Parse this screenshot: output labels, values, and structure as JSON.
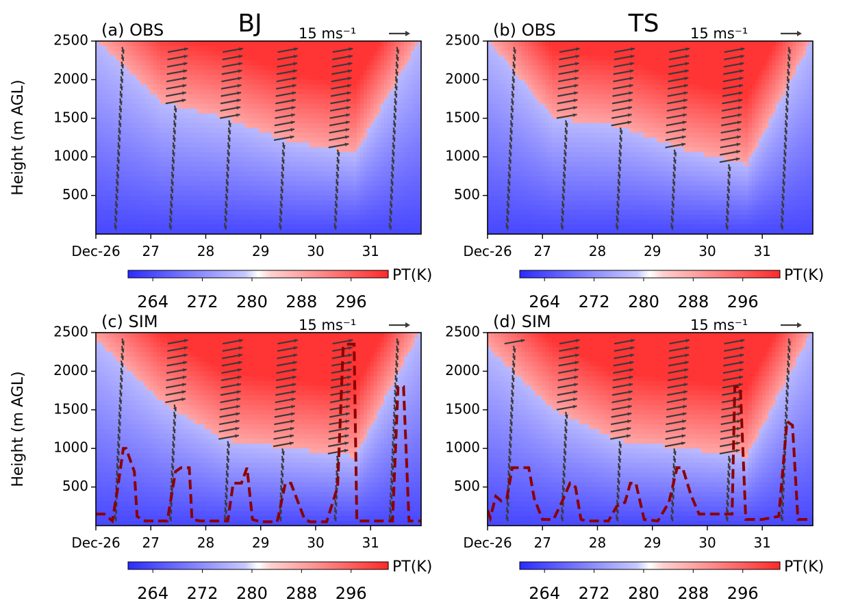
{
  "figure": {
    "title_left": "BJ",
    "title_right": "TS"
  },
  "colors": {
    "cold": "#2b2bff",
    "mid": "#ffffff",
    "warm": "#ff2a2a",
    "arrow": "#3a3a3a",
    "pbl": "#8b0000"
  },
  "chart_data": [
    {
      "type": "heatmap",
      "panel_label": "(a) OBS",
      "site": "BJ",
      "ylabel": "Height (m AGL)",
      "xlabel": "",
      "x_ticks": [
        "Dec-26",
        "27",
        "28",
        "29",
        "30",
        "31"
      ],
      "x_range": [
        26.0,
        31.92
      ],
      "y_ticks": [
        500,
        1000,
        1500,
        2000,
        2500
      ],
      "y_range": [
        0,
        2500
      ],
      "colorbar": {
        "label": "PT(K)",
        "ticks": [
          264,
          272,
          280,
          288,
          296
        ],
        "range": [
          260,
          302
        ]
      },
      "reference_vector": "15 ms⁻¹",
      "observation_times": [
        26.35,
        27.35,
        28.35,
        29.35,
        30.35,
        31.35
      ],
      "warm_layer_base_m": [
        2500,
        1700,
        1500,
        1200,
        1050,
        2500
      ],
      "pbl_height_m": null
    },
    {
      "type": "heatmap",
      "panel_label": "(b) OBS",
      "site": "TS",
      "ylabel": "",
      "xlabel": "",
      "x_ticks": [
        "Dec-26",
        "27",
        "28",
        "29",
        "30",
        "31"
      ],
      "x_range": [
        26.0,
        31.92
      ],
      "y_ticks": [
        500,
        1000,
        1500,
        2000,
        2500
      ],
      "y_range": [
        0,
        2500
      ],
      "colorbar": {
        "label": "PT(K)",
        "ticks": [
          264,
          272,
          280,
          288,
          296
        ],
        "range": [
          260,
          302
        ]
      },
      "reference_vector": "15 ms⁻¹",
      "observation_times": [
        26.35,
        27.35,
        28.35,
        29.35,
        30.35,
        31.35
      ],
      "warm_layer_base_m": [
        2500,
        1500,
        1400,
        1100,
        900,
        2500
      ],
      "pbl_height_m": null
    },
    {
      "type": "heatmap",
      "panel_label": "(c) SIM",
      "site": "BJ",
      "ylabel": "Height (m AGL)",
      "xlabel": "",
      "x_ticks": [
        "Dec-26",
        "27",
        "28",
        "29",
        "30",
        "31"
      ],
      "x_range": [
        26.0,
        31.92
      ],
      "y_ticks": [
        500,
        1000,
        1500,
        2000,
        2500
      ],
      "y_range": [
        0,
        2500
      ],
      "colorbar": {
        "label": "PT(K)",
        "ticks": [
          264,
          272,
          280,
          288,
          296
        ],
        "range": [
          260,
          302
        ]
      },
      "reference_vector": "15 ms⁻¹",
      "observation_times": [
        26.35,
        27.35,
        28.35,
        29.35,
        30.35,
        31.35
      ],
      "warm_layer_base_m": [
        2400,
        1600,
        1100,
        1000,
        900,
        2500
      ],
      "pbl_height_m": {
        "x": [
          26.0,
          26.15,
          26.3,
          26.4,
          26.5,
          26.55,
          26.7,
          26.75,
          26.9,
          27.1,
          27.3,
          27.45,
          27.55,
          27.7,
          27.75,
          27.9,
          28.2,
          28.4,
          28.5,
          28.65,
          28.75,
          28.85,
          29.0,
          29.3,
          29.45,
          29.55,
          29.8,
          29.9,
          30.2,
          30.4,
          30.5,
          30.55,
          30.7,
          30.75,
          30.9,
          31.0,
          31.25,
          31.4,
          31.5,
          31.6,
          31.7,
          31.8,
          31.92
        ],
        "y": [
          150,
          150,
          60,
          500,
          1000,
          1000,
          700,
          120,
          60,
          60,
          60,
          700,
          750,
          750,
          80,
          60,
          60,
          60,
          550,
          550,
          750,
          80,
          50,
          50,
          550,
          550,
          80,
          50,
          50,
          500,
          2300,
          2350,
          2350,
          60,
          60,
          60,
          60,
          60,
          1800,
          1800,
          60,
          60,
          60
        ]
      }
    },
    {
      "type": "heatmap",
      "panel_label": "(d) SIM",
      "site": "TS",
      "ylabel": "",
      "xlabel": "",
      "x_ticks": [
        "Dec-26",
        "27",
        "28",
        "29",
        "30",
        "31"
      ],
      "x_range": [
        26.0,
        31.92
      ],
      "y_ticks": [
        500,
        1000,
        1500,
        2000,
        2500
      ],
      "y_range": [
        0,
        2500
      ],
      "colorbar": {
        "label": "PT(K)",
        "ticks": [
          264,
          272,
          280,
          288,
          296
        ],
        "range": [
          260,
          302
        ]
      },
      "reference_vector": "15 ms⁻¹",
      "observation_times": [
        26.35,
        27.35,
        28.35,
        29.35,
        30.35,
        31.35
      ],
      "warm_layer_base_m": [
        2300,
        1500,
        1100,
        1000,
        900,
        2500
      ],
      "pbl_height_m": {
        "x": [
          26.0,
          26.05,
          26.15,
          26.25,
          26.35,
          26.45,
          26.6,
          26.75,
          26.85,
          27.0,
          27.2,
          27.35,
          27.5,
          27.6,
          27.7,
          27.8,
          28.0,
          28.2,
          28.35,
          28.5,
          28.6,
          28.7,
          28.85,
          29.1,
          29.3,
          29.45,
          29.55,
          29.7,
          29.85,
          30.0,
          30.3,
          30.45,
          30.5,
          30.6,
          30.7,
          30.8,
          31.0,
          31.3,
          31.45,
          31.55,
          31.65,
          31.75,
          31.92
        ],
        "y": [
          200,
          100,
          380,
          320,
          350,
          750,
          750,
          750,
          350,
          80,
          80,
          300,
          550,
          500,
          80,
          60,
          60,
          60,
          250,
          300,
          550,
          550,
          80,
          60,
          300,
          750,
          750,
          400,
          150,
          150,
          150,
          150,
          1800,
          1800,
          80,
          80,
          80,
          120,
          1350,
          1300,
          80,
          80,
          80
        ]
      }
    }
  ]
}
